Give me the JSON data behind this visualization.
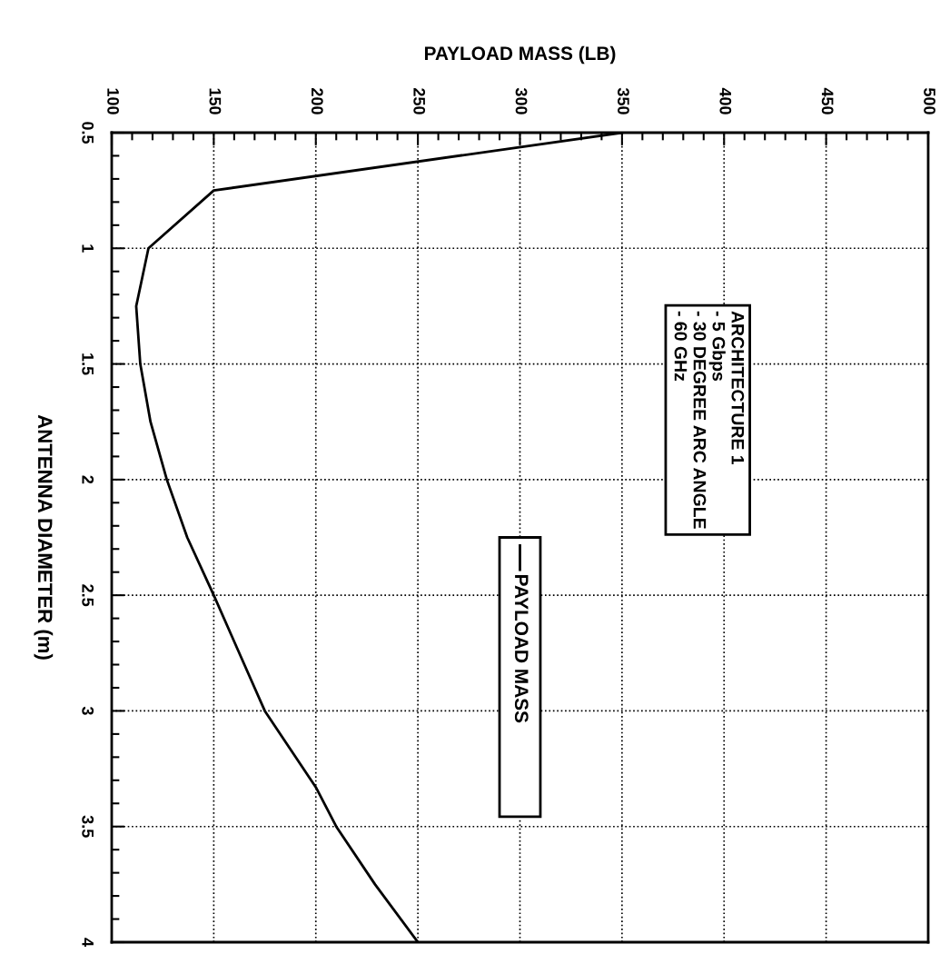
{
  "chart_data": {
    "type": "line",
    "xlabel": "PAYLOAD MASS (LB)",
    "ylabel": "ANTENNA DIAMETER (m)",
    "x": [
      350,
      150,
      118,
      112,
      114,
      119,
      127,
      137,
      150,
      175,
      200,
      210,
      229,
      250
    ],
    "series": [
      {
        "name": "PAYLOAD MASS",
        "color": "#000000",
        "values": [
          0.5,
          0.75,
          1.0,
          1.25,
          1.5,
          1.75,
          2.0,
          2.25,
          2.5,
          3.0,
          3.33,
          3.5,
          3.75,
          4.0
        ]
      }
    ],
    "xlim": [
      100,
      500
    ],
    "xticks": [
      100,
      150,
      200,
      250,
      300,
      350,
      400,
      450,
      500
    ],
    "ylim": [
      4,
      0.5
    ],
    "yticks": [
      0.5,
      1,
      1.5,
      2,
      2.5,
      3,
      3.5,
      4
    ],
    "grid": true,
    "legend": "center",
    "marker": "none",
    "line_style": "solid",
    "annotations": [
      "ARCHITECTURE 1\n- 5 Gbps\n- 30 DEGREE ARC ANGLE\n- 60 GHz"
    ]
  }
}
